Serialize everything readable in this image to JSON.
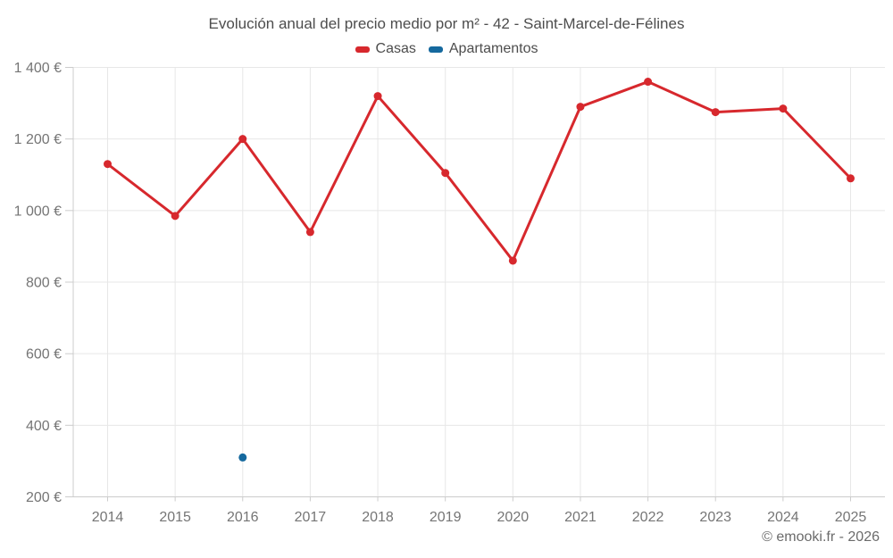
{
  "title": "Evolución anual del precio medio por m² - 42 - Saint-Marcel-de-Félines",
  "footer": "© emooki.fr - 2026",
  "legend": [
    {
      "label": "Casas",
      "color": "#d7282d"
    },
    {
      "label": "Apartamentos",
      "color": "#15699e"
    }
  ],
  "colors": {
    "casas": "#d7282d",
    "apartamentos": "#15699e",
    "grid": "#e7e7e7",
    "axis": "#cccccc",
    "tick_text": "#757575",
    "title_text": "#4d4d4d"
  },
  "chart_data": {
    "type": "line",
    "title": "Evolución anual del precio medio por m² - 42 - Saint-Marcel-de-Félines",
    "xlabel": "",
    "ylabel": "",
    "categories": [
      "2014",
      "2015",
      "2016",
      "2017",
      "2018",
      "2019",
      "2020",
      "2021",
      "2022",
      "2023",
      "2024",
      "2025"
    ],
    "series": [
      {
        "name": "Casas",
        "color": "#d7282d",
        "values": [
          1130,
          985,
          1200,
          940,
          1320,
          1105,
          860,
          1290,
          1360,
          1275,
          1285,
          1090
        ]
      },
      {
        "name": "Apartamentos",
        "color": "#15699e",
        "values": [
          null,
          null,
          310,
          null,
          null,
          null,
          null,
          null,
          null,
          null,
          null,
          null
        ]
      }
    ],
    "ylim": [
      200,
      1400
    ],
    "ytick_step": 200,
    "yticks": [
      {
        "value": 1400,
        "label": "1 400 €"
      },
      {
        "value": 1200,
        "label": "1 200 €"
      },
      {
        "value": 1000,
        "label": "1 000 €"
      },
      {
        "value": 800,
        "label": "800 €"
      },
      {
        "value": 600,
        "label": "600 €"
      },
      {
        "value": 400,
        "label": "400 €"
      },
      {
        "value": 200,
        "label": "200 €"
      }
    ],
    "grid": true,
    "legend_position": "top",
    "currency_suffix": " €"
  }
}
